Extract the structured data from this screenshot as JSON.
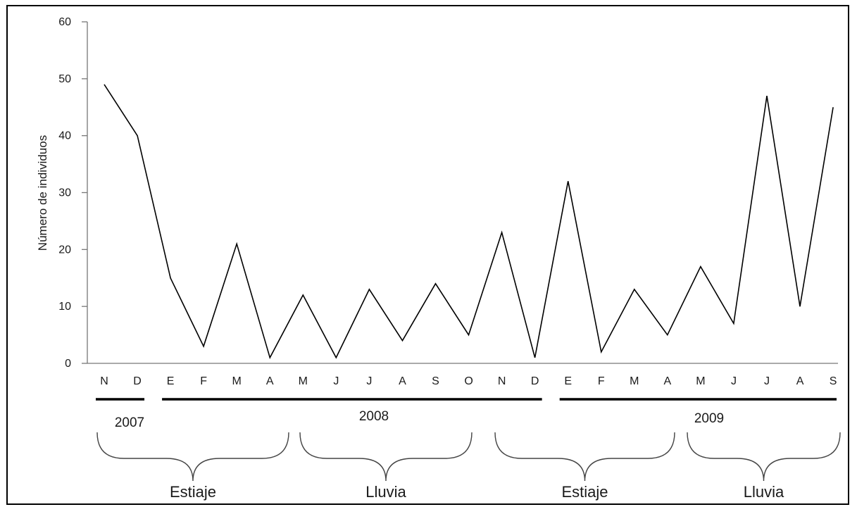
{
  "chart_data": {
    "type": "line",
    "title": "",
    "xlabel": "",
    "ylabel": "Número de individuos",
    "ylim": [
      0,
      60
    ],
    "yticks": [
      0,
      10,
      20,
      30,
      40,
      50,
      60
    ],
    "categories": [
      "N",
      "D",
      "E",
      "F",
      "M",
      "A",
      "M",
      "J",
      "J",
      "A",
      "S",
      "O",
      "N",
      "D",
      "E",
      "F",
      "M",
      "A",
      "M",
      "J",
      "J",
      "A",
      "S"
    ],
    "values": [
      49,
      40,
      15,
      3,
      21,
      1,
      12,
      1,
      13,
      4,
      14,
      5,
      23,
      1,
      32,
      2,
      13,
      5,
      17,
      7,
      47,
      10,
      45
    ],
    "line_color": "#000000",
    "grid": false,
    "years": [
      {
        "label": "2007",
        "from": 0,
        "to": 1
      },
      {
        "label": "2008",
        "from": 2,
        "to": 13
      },
      {
        "label": "2009",
        "from": 14,
        "to": 22
      }
    ],
    "seasons": [
      {
        "label": "Estiaje",
        "from": 0,
        "to": 5
      },
      {
        "label": "Lluvia",
        "from": 6,
        "to": 10
      },
      {
        "label": "Estiaje",
        "from": 12,
        "to": 17
      },
      {
        "label": "Lluvia",
        "from": 18,
        "to": 22
      }
    ]
  }
}
